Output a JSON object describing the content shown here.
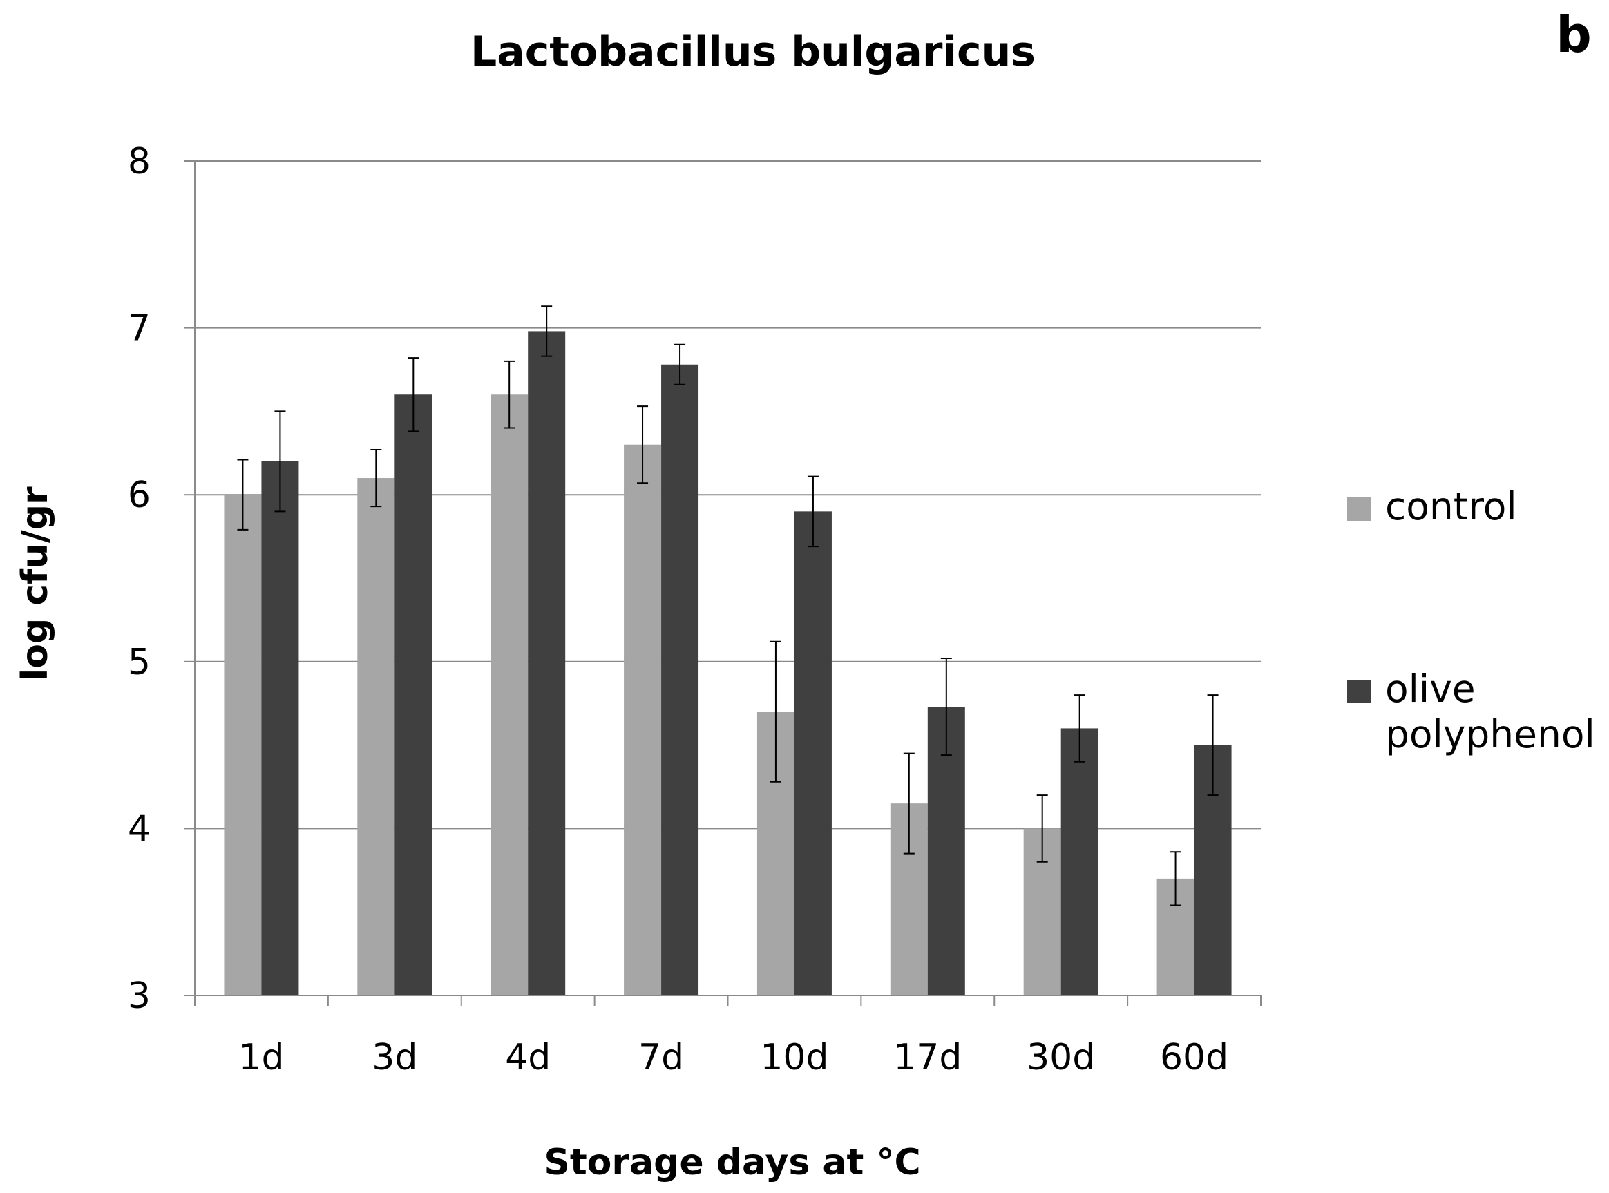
{
  "panel_label": "b",
  "chart_data": {
    "type": "bar",
    "title": "Lactobacillus bulgaricus",
    "xlabel": "Storage days at °C",
    "ylabel": "log cfu/gr",
    "ylim": [
      3,
      8
    ],
    "yticks": [
      3,
      4,
      5,
      6,
      7,
      8
    ],
    "grid": true,
    "legend_position": "right",
    "categories": [
      "1d",
      "3d",
      "4d",
      "7d",
      "10d",
      "17d",
      "30d",
      "60d"
    ],
    "series": [
      {
        "name": "control",
        "color": "#a6a6a6",
        "values": [
          6.0,
          6.1,
          6.6,
          6.3,
          4.7,
          4.15,
          4.0,
          3.7
        ],
        "errors": [
          0.21,
          0.17,
          0.2,
          0.23,
          0.42,
          0.3,
          0.2,
          0.16
        ]
      },
      {
        "name": "olive polyphenol",
        "color": "#404040",
        "values": [
          6.2,
          6.6,
          6.98,
          6.78,
          5.9,
          4.73,
          4.6,
          4.5
        ],
        "errors": [
          0.3,
          0.22,
          0.15,
          0.12,
          0.21,
          0.29,
          0.2,
          0.3
        ]
      }
    ]
  }
}
